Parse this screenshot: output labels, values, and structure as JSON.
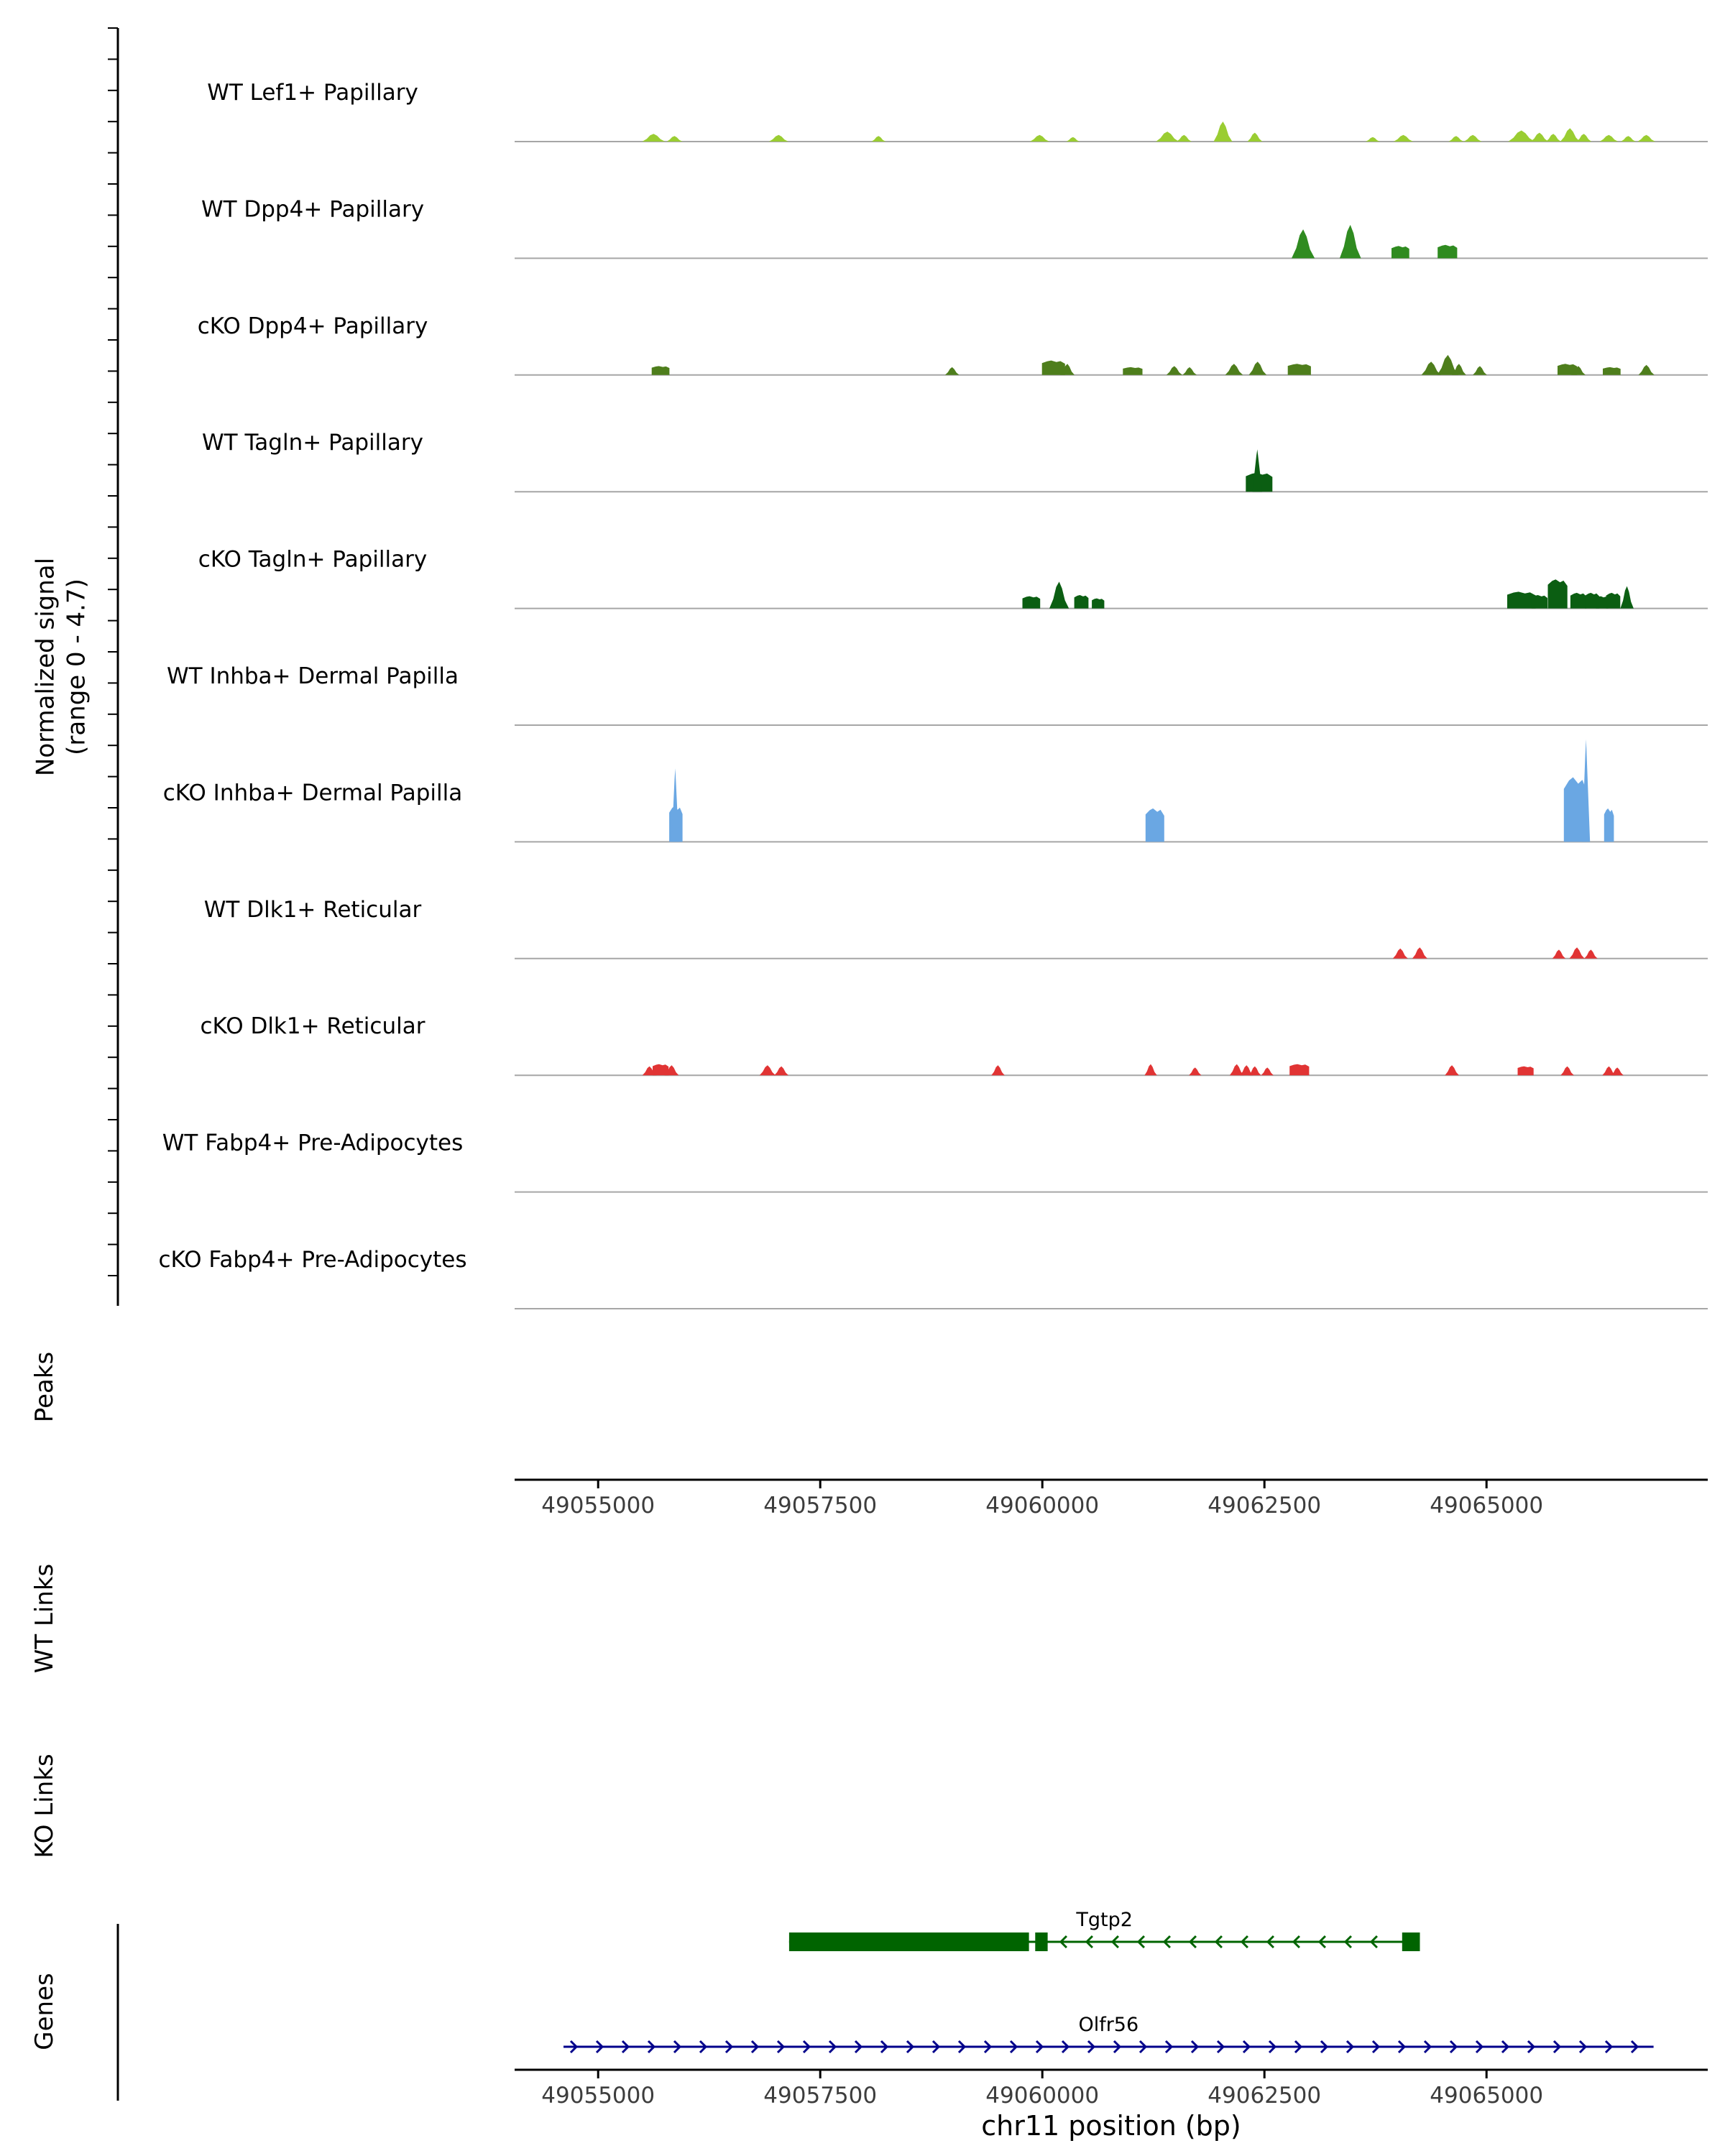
{
  "y_axis": {
    "label_line1": "Normalized signal",
    "label_line2": "(range 0 - 4.7)"
  },
  "sections": {
    "peaks": "Peaks",
    "wt_links": "WT Links",
    "ko_links": "KO Links",
    "genes": "Genes"
  },
  "x_axis": {
    "label": "chr11 position (bp)",
    "ticks": [
      "49055000",
      "49057500",
      "49060000",
      "49062500",
      "49065000"
    ]
  },
  "chart_data": {
    "type": "area",
    "title": "Genome browser signal tracks, chr11",
    "x_domain_bp": [
      49054060,
      49067490
    ],
    "signal_range": [
      0,
      4.7
    ],
    "tracks": [
      {
        "label": "WT Lef1+ Papillary",
        "color": "#9ACD32",
        "peaks": [
          [
            49055625,
            260,
            0.35,
            "t"
          ],
          [
            49055860,
            180,
            0.25,
            "t"
          ],
          [
            49057032,
            220,
            0.3,
            "t"
          ],
          [
            49058157,
            160,
            0.25,
            "t"
          ],
          [
            49059970,
            220,
            0.3,
            "t"
          ],
          [
            49060345,
            150,
            0.2,
            "t"
          ],
          [
            49061408,
            260,
            0.45,
            "t"
          ],
          [
            49061595,
            170,
            0.3,
            "t"
          ],
          [
            49062033,
            210,
            0.9,
            "t"
          ],
          [
            49062392,
            170,
            0.4,
            "t"
          ],
          [
            49063720,
            160,
            0.2,
            "t"
          ],
          [
            49064064,
            220,
            0.3,
            "t"
          ],
          [
            49064658,
            170,
            0.25,
            "t"
          ],
          [
            49064846,
            200,
            0.3,
            "t"
          ],
          [
            49065393,
            300,
            0.5,
            "t"
          ],
          [
            49065596,
            200,
            0.4,
            "t"
          ],
          [
            49065752,
            170,
            0.35,
            "t"
          ],
          [
            49065940,
            220,
            0.6,
            "t"
          ],
          [
            49066096,
            170,
            0.35,
            "t"
          ],
          [
            49066377,
            210,
            0.3,
            "t"
          ],
          [
            49066596,
            170,
            0.25,
            "t"
          ],
          [
            49066799,
            200,
            0.3,
            "t"
          ]
        ]
      },
      {
        "label": "WT Dpp4+ Papillary",
        "color": "#2f8b20",
        "peaks": [
          [
            49062936,
            260,
            1.3,
            "t"
          ],
          [
            49063467,
            240,
            1.5,
            "t"
          ],
          [
            49064030,
            200,
            0.55,
            "b"
          ],
          [
            49064560,
            220,
            0.6,
            "b"
          ]
        ]
      },
      {
        "label": "cKO Dpp4+ Papillary",
        "color": "#4e7e1c",
        "peaks": [
          [
            49055703,
            200,
            0.4,
            "b"
          ],
          [
            49058985,
            160,
            0.35,
            "t"
          ],
          [
            49060126,
            260,
            0.65,
            "b"
          ],
          [
            49060282,
            160,
            0.5,
            "t"
          ],
          [
            49061017,
            220,
            0.35,
            "b"
          ],
          [
            49061486,
            180,
            0.4,
            "t"
          ],
          [
            49061658,
            160,
            0.35,
            "t"
          ],
          [
            49062158,
            200,
            0.5,
            "t"
          ],
          [
            49062424,
            200,
            0.6,
            "t"
          ],
          [
            49062893,
            260,
            0.5,
            "b"
          ],
          [
            49064377,
            220,
            0.6,
            "t"
          ],
          [
            49064565,
            240,
            0.9,
            "t"
          ],
          [
            49064690,
            160,
            0.5,
            "t"
          ],
          [
            49064925,
            160,
            0.4,
            "t"
          ],
          [
            49065909,
            220,
            0.5,
            "b"
          ],
          [
            49066034,
            160,
            0.4,
            "t"
          ],
          [
            49066409,
            200,
            0.35,
            "b"
          ],
          [
            49066800,
            180,
            0.45,
            "t"
          ]
        ]
      },
      {
        "label": "WT Tagln+ Papillary",
        "color": "#0b5e12",
        "peaks": [
          [
            49062440,
            300,
            0.85,
            "b"
          ],
          [
            49062420,
            110,
            1.9,
            "s"
          ]
        ]
      },
      {
        "label": "cKO Tagln+ Papillary",
        "color": "#0b5e12",
        "peaks": [
          [
            49059876,
            200,
            0.55,
            "b"
          ],
          [
            49060189,
            220,
            1.2,
            "t"
          ],
          [
            49060439,
            160,
            0.6,
            "b"
          ],
          [
            49060627,
            140,
            0.45,
            "b"
          ],
          [
            49065393,
            320,
            0.75,
            "b"
          ],
          [
            49065596,
            180,
            0.6,
            "b"
          ],
          [
            49065800,
            220,
            1.3,
            "b"
          ],
          [
            49066034,
            180,
            0.7,
            "b"
          ],
          [
            49066190,
            160,
            0.7,
            "b"
          ],
          [
            49066300,
            140,
            0.55,
            "b"
          ],
          [
            49066425,
            160,
            0.7,
            "b"
          ],
          [
            49066581,
            150,
            1.0,
            "t"
          ]
        ]
      },
      {
        "label": "WT Inhba+ Dermal Papilla",
        "color": "#6aa7e3",
        "peaks": []
      },
      {
        "label": "cKO Inhba+ Dermal Papilla",
        "color": "#6aa7e3",
        "peaks": [
          [
            49055875,
            150,
            1.6,
            "b"
          ],
          [
            49055868,
            80,
            3.3,
            "s"
          ],
          [
            49061267,
            210,
            1.5,
            "b"
          ],
          [
            49066000,
            260,
            2.9,
            "b"
          ],
          [
            49066120,
            90,
            4.6,
            "s"
          ],
          [
            49066378,
            110,
            1.5,
            "b"
          ]
        ]
      },
      {
        "label": "WT Dlk1+ Reticular",
        "color": "#e13434",
        "peaks": [
          [
            49064030,
            170,
            0.45,
            "t"
          ],
          [
            49064249,
            170,
            0.5,
            "t"
          ],
          [
            49065815,
            150,
            0.4,
            "t"
          ],
          [
            49066018,
            170,
            0.5,
            "t"
          ],
          [
            49066175,
            150,
            0.4,
            "t"
          ]
        ]
      },
      {
        "label": "cKO Dlk1+ Reticular",
        "color": "#e13434",
        "peaks": [
          [
            49055578,
            160,
            0.4,
            "t"
          ],
          [
            49055703,
            180,
            0.5,
            "b"
          ],
          [
            49055828,
            160,
            0.45,
            "t"
          ],
          [
            49056907,
            180,
            0.45,
            "t"
          ],
          [
            49057063,
            160,
            0.4,
            "t"
          ],
          [
            49059501,
            150,
            0.45,
            "t"
          ],
          [
            49061220,
            140,
            0.5,
            "t"
          ],
          [
            49061720,
            140,
            0.35,
            "t"
          ],
          [
            49062189,
            160,
            0.5,
            "t"
          ],
          [
            49062299,
            150,
            0.45,
            "t"
          ],
          [
            49062392,
            140,
            0.4,
            "t"
          ],
          [
            49062533,
            140,
            0.35,
            "t"
          ],
          [
            49062893,
            220,
            0.5,
            "b"
          ],
          [
            49064611,
            160,
            0.45,
            "t"
          ],
          [
            49065440,
            180,
            0.4,
            "b"
          ],
          [
            49065909,
            150,
            0.4,
            "t"
          ],
          [
            49066378,
            150,
            0.4,
            "t"
          ],
          [
            49066472,
            140,
            0.35,
            "t"
          ]
        ]
      },
      {
        "label": "WT Fabp4+ Pre-Adipocytes",
        "color": null,
        "peaks": []
      },
      {
        "label": "cKO Fabp4+ Pre-Adipocytes",
        "color": null,
        "peaks": []
      }
    ],
    "genes": [
      {
        "name": "Tgtp2",
        "color": "#006400",
        "strand": "-",
        "start": 49057150,
        "end": 49064250,
        "exons": [
          [
            49057150,
            49059850
          ],
          [
            49059920,
            49060060
          ],
          [
            49064050,
            49064250
          ]
        ]
      },
      {
        "name": "Olfr56",
        "color": "#00008B",
        "strand": "+",
        "start": 49054610,
        "end": 49066880,
        "exons": []
      }
    ]
  }
}
